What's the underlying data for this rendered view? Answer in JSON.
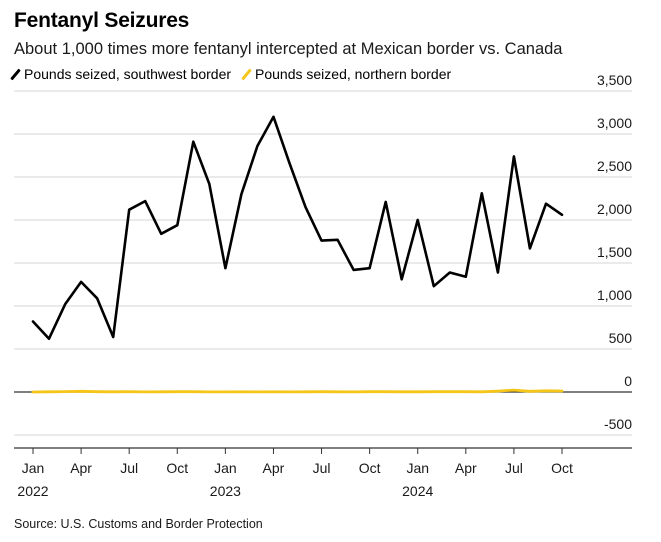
{
  "title": "Fentanyl Seizures",
  "subtitle": "About 1,000 times more fentanyl intercepted at Mexican border vs. Canada",
  "source": "Source: U.S. Customs and Border Protection",
  "legend": [
    {
      "label": "Pounds seized, southwest border",
      "color": "#000000"
    },
    {
      "label": "Pounds seized, northern border",
      "color": "#F5C518"
    }
  ],
  "chart_data": {
    "type": "line",
    "title": "Fentanyl Seizures",
    "subtitle": "About 1,000 times more fentanyl intercepted at Mexican border vs. Canada",
    "xlabel": "",
    "ylabel": "",
    "ylim": [
      -500,
      3500
    ],
    "yticks": [
      3500,
      3000,
      2500,
      2000,
      1500,
      1000,
      500,
      0,
      -500
    ],
    "ytick_labels": [
      "3,500",
      "3,000",
      "2,500",
      "2,000",
      "1,500",
      "1,000",
      "500",
      "0",
      "-500"
    ],
    "grid": true,
    "legend_position": "top-left",
    "x": [
      "2022-01",
      "2022-02",
      "2022-03",
      "2022-04",
      "2022-05",
      "2022-06",
      "2022-07",
      "2022-08",
      "2022-09",
      "2022-10",
      "2022-11",
      "2022-12",
      "2023-01",
      "2023-02",
      "2023-03",
      "2023-04",
      "2023-05",
      "2023-06",
      "2023-07",
      "2023-08",
      "2023-09",
      "2023-10",
      "2023-11",
      "2023-12",
      "2024-01",
      "2024-02",
      "2024-03",
      "2024-04",
      "2024-05",
      "2024-06",
      "2024-07",
      "2024-08",
      "2024-09",
      "2024-10"
    ],
    "xticks": [
      {
        "month": "Jan",
        "year": "2022",
        "x": "2022-01"
      },
      {
        "month": "Apr",
        "year": "",
        "x": "2022-04"
      },
      {
        "month": "Jul",
        "year": "",
        "x": "2022-07"
      },
      {
        "month": "Oct",
        "year": "",
        "x": "2022-10"
      },
      {
        "month": "Jan",
        "year": "2023",
        "x": "2023-01"
      },
      {
        "month": "Apr",
        "year": "",
        "x": "2023-04"
      },
      {
        "month": "Jul",
        "year": "",
        "x": "2023-07"
      },
      {
        "month": "Oct",
        "year": "",
        "x": "2023-10"
      },
      {
        "month": "Jan",
        "year": "2024",
        "x": "2024-01"
      },
      {
        "month": "Apr",
        "year": "",
        "x": "2024-04"
      },
      {
        "month": "Jul",
        "year": "",
        "x": "2024-07"
      },
      {
        "month": "Oct",
        "year": "",
        "x": "2024-10"
      }
    ],
    "series": [
      {
        "name": "Pounds seized, southwest border",
        "color": "#000000",
        "values": [
          820,
          620,
          1020,
          1280,
          1090,
          640,
          2120,
          2220,
          1840,
          1940,
          2910,
          2420,
          1440,
          2300,
          2860,
          3200,
          2660,
          2150,
          1760,
          1770,
          1420,
          1440,
          2210,
          1310,
          2000,
          1230,
          1390,
          1340,
          2310,
          1390,
          2740,
          1670,
          2190,
          2060
        ]
      },
      {
        "name": "Pounds seized, northern border",
        "color": "#F5C518",
        "values": [
          0,
          2,
          5,
          8,
          3,
          2,
          3,
          1,
          2,
          4,
          3,
          1,
          1,
          2,
          1,
          2,
          1,
          2,
          3,
          2,
          1,
          4,
          3,
          2,
          2,
          3,
          4,
          3,
          2,
          10,
          22,
          8,
          14,
          12
        ]
      }
    ]
  }
}
